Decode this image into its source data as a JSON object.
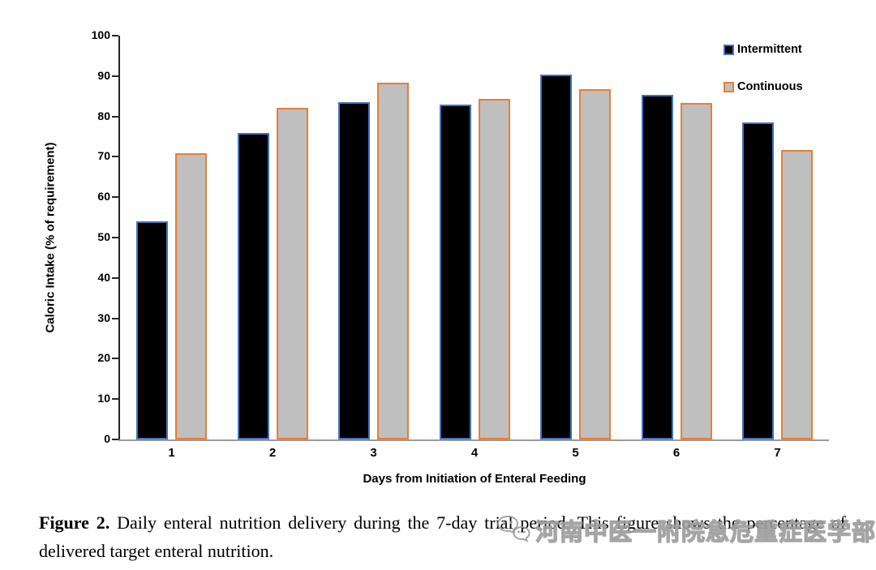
{
  "chart_data": {
    "type": "bar",
    "title": "",
    "xlabel": "Days from Initiation of Enteral Feeding",
    "ylabel": "Caloric Intake (% of requirement)",
    "categories": [
      "1",
      "2",
      "3",
      "4",
      "5",
      "6",
      "7"
    ],
    "series": [
      {
        "name": "Intermittent",
        "fill": "#000000",
        "border": "#4472C4",
        "values": [
          54.1,
          76.0,
          83.5,
          83.0,
          90.4,
          85.4,
          78.6
        ]
      },
      {
        "name": "Continuous",
        "fill": "#BFBFBF",
        "border": "#ED7D31",
        "values": [
          70.8,
          82.1,
          88.3,
          84.3,
          86.7,
          83.3,
          71.7
        ]
      }
    ],
    "ylim": [
      0,
      100
    ],
    "yticks": [
      0,
      10,
      20,
      30,
      40,
      50,
      60,
      70,
      80,
      90,
      100
    ],
    "grid": false,
    "legend_position": "top-right"
  },
  "caption": {
    "label": "Figure 2.",
    "text": "Daily enteral nutrition delivery during the 7-day trial period.  This figure shows the percentage of delivered target enteral nutrition."
  },
  "watermark": {
    "icon": "wechat-icon",
    "text": "河南中医一附院急危重症医学部"
  }
}
